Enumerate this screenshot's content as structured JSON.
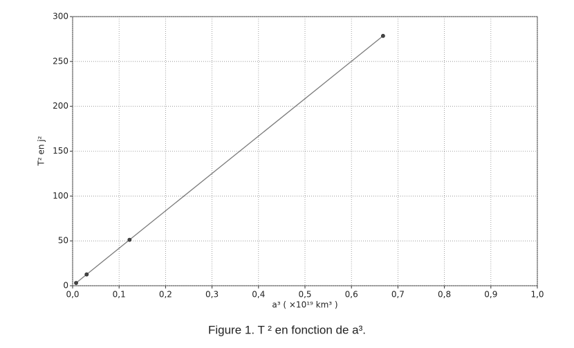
{
  "chart_data": {
    "type": "line",
    "caption": "Figure 1. T ² en fonction de a³.",
    "x_label": "a³ ( ×10¹⁹ km³ )",
    "y_label": "T² en j²",
    "x": [
      0.0075,
      0.0302,
      0.1225,
      0.668
    ],
    "series": [
      {
        "color": "#7a7a7a",
        "marker_color": "#444444",
        "values": [
          3.1,
          12.6,
          51.2,
          278.5
        ]
      }
    ],
    "xlim": [
      0,
      1
    ],
    "xticks": [
      {
        "value": 0,
        "label": "0,0"
      },
      {
        "value": 0.1,
        "label": "0,1"
      },
      {
        "value": 0.2,
        "label": "0,2"
      },
      {
        "value": 0.3,
        "label": "0,3"
      },
      {
        "value": 0.4,
        "label": "0,4"
      },
      {
        "value": 0.5,
        "label": "0,5"
      },
      {
        "value": 0.6,
        "label": "0,6"
      },
      {
        "value": 0.7,
        "label": "0,7"
      },
      {
        "value": 0.8,
        "label": "0,8"
      },
      {
        "value": 0.9,
        "label": "0,9"
      },
      {
        "value": 1,
        "label": "1,0"
      }
    ],
    "ylim": [
      0,
      300
    ],
    "yticks": [
      0,
      50,
      100,
      150,
      200,
      250,
      300
    ],
    "grid": true
  }
}
